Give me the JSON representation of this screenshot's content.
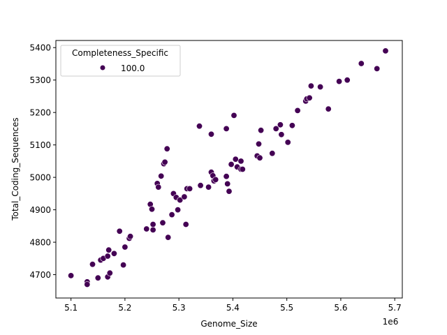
{
  "chart_data": {
    "type": "scatter",
    "title": "",
    "xlabel": "Genome_Size",
    "ylabel": "Total_Coding_Sequences",
    "x_offset_label": "1e6",
    "xlim": [
      5.072,
      5.714
    ],
    "ylim": [
      4628,
      5422
    ],
    "x_ticks": [
      5.1,
      5.2,
      5.3,
      5.4,
      5.5,
      5.6,
      5.7
    ],
    "x_tick_labels": [
      "5.1",
      "5.2",
      "5.3",
      "5.4",
      "5.5",
      "5.6",
      "5.7"
    ],
    "y_ticks": [
      4700,
      4800,
      4900,
      5000,
      5100,
      5200,
      5300,
      5400
    ],
    "y_tick_labels": [
      "4700",
      "4800",
      "4900",
      "5000",
      "5100",
      "5200",
      "5300",
      "5400"
    ],
    "grid": false,
    "legend": {
      "title": "Completeness_Specific",
      "position": "upper left",
      "entries": [
        {
          "label": "100.0",
          "color": "#440154"
        }
      ]
    },
    "series": [
      {
        "name": "100.0",
        "color": "#440154",
        "points": [
          [
            5.1,
            4697
          ],
          [
            5.13,
            4678
          ],
          [
            5.13,
            4670
          ],
          [
            5.14,
            4732
          ],
          [
            5.15,
            4690
          ],
          [
            5.155,
            4745
          ],
          [
            5.16,
            4750
          ],
          [
            5.168,
            4693
          ],
          [
            5.168,
            4757
          ],
          [
            5.17,
            4776
          ],
          [
            5.172,
            4705
          ],
          [
            5.18,
            4765
          ],
          [
            5.19,
            4834
          ],
          [
            5.197,
            4730
          ],
          [
            5.2,
            4785
          ],
          [
            5.208,
            4812
          ],
          [
            5.21,
            4818
          ],
          [
            5.24,
            4841
          ],
          [
            5.247,
            4917
          ],
          [
            5.25,
            4902
          ],
          [
            5.252,
            4855
          ],
          [
            5.252,
            4838
          ],
          [
            5.26,
            4981
          ],
          [
            5.262,
            4970
          ],
          [
            5.267,
            5004
          ],
          [
            5.27,
            4860
          ],
          [
            5.272,
            5042
          ],
          [
            5.274,
            5047
          ],
          [
            5.278,
            5088
          ],
          [
            5.28,
            4815
          ],
          [
            5.287,
            4885
          ],
          [
            5.29,
            4950
          ],
          [
            5.295,
            4938
          ],
          [
            5.298,
            4900
          ],
          [
            5.302,
            4930
          ],
          [
            5.31,
            4940
          ],
          [
            5.313,
            4855
          ],
          [
            5.315,
            4965
          ],
          [
            5.32,
            4965
          ],
          [
            5.338,
            5158
          ],
          [
            5.34,
            4975
          ],
          [
            5.355,
            4970
          ],
          [
            5.36,
            5133
          ],
          [
            5.36,
            5016
          ],
          [
            5.363,
            5005
          ],
          [
            5.365,
            4989
          ],
          [
            5.368,
            4993
          ],
          [
            5.388,
            5150
          ],
          [
            5.388,
            5003
          ],
          [
            5.39,
            4980
          ],
          [
            5.393,
            4957
          ],
          [
            5.397,
            5040
          ],
          [
            5.402,
            5191
          ],
          [
            5.405,
            5056
          ],
          [
            5.408,
            5032
          ],
          [
            5.415,
            5050
          ],
          [
            5.415,
            5025
          ],
          [
            5.418,
            5025
          ],
          [
            5.445,
            5066
          ],
          [
            5.448,
            5103
          ],
          [
            5.45,
            5060
          ],
          [
            5.452,
            5145
          ],
          [
            5.473,
            5074
          ],
          [
            5.48,
            5150
          ],
          [
            5.488,
            5162
          ],
          [
            5.49,
            5132
          ],
          [
            5.502,
            5108
          ],
          [
            5.51,
            5160
          ],
          [
            5.52,
            5206
          ],
          [
            5.535,
            5235
          ],
          [
            5.537,
            5242
          ],
          [
            5.542,
            5245
          ],
          [
            5.545,
            5282
          ],
          [
            5.562,
            5279
          ],
          [
            5.577,
            5211
          ],
          [
            5.597,
            5296
          ],
          [
            5.612,
            5300
          ],
          [
            5.638,
            5351
          ],
          [
            5.667,
            5335
          ],
          [
            5.683,
            5390
          ]
        ]
      }
    ]
  }
}
